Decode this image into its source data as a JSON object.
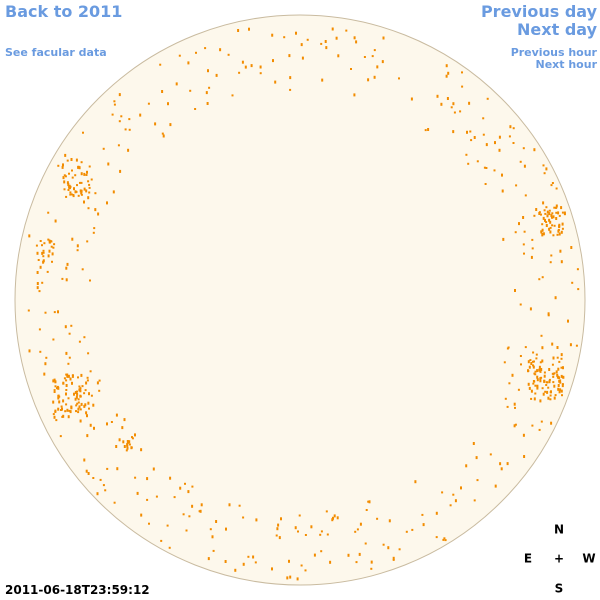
{
  "nav": {
    "back": "Back to 2011",
    "facular": "See facular data",
    "previous_day": "Previous day",
    "next_day": "Next day",
    "previous_hour": "Previous hour",
    "next_hour": "Next hour"
  },
  "compass": {
    "north": "N",
    "east": "E",
    "center": "+",
    "west": "W",
    "south": "S"
  },
  "timestamp": "2011-06-18T23:59:12"
}
